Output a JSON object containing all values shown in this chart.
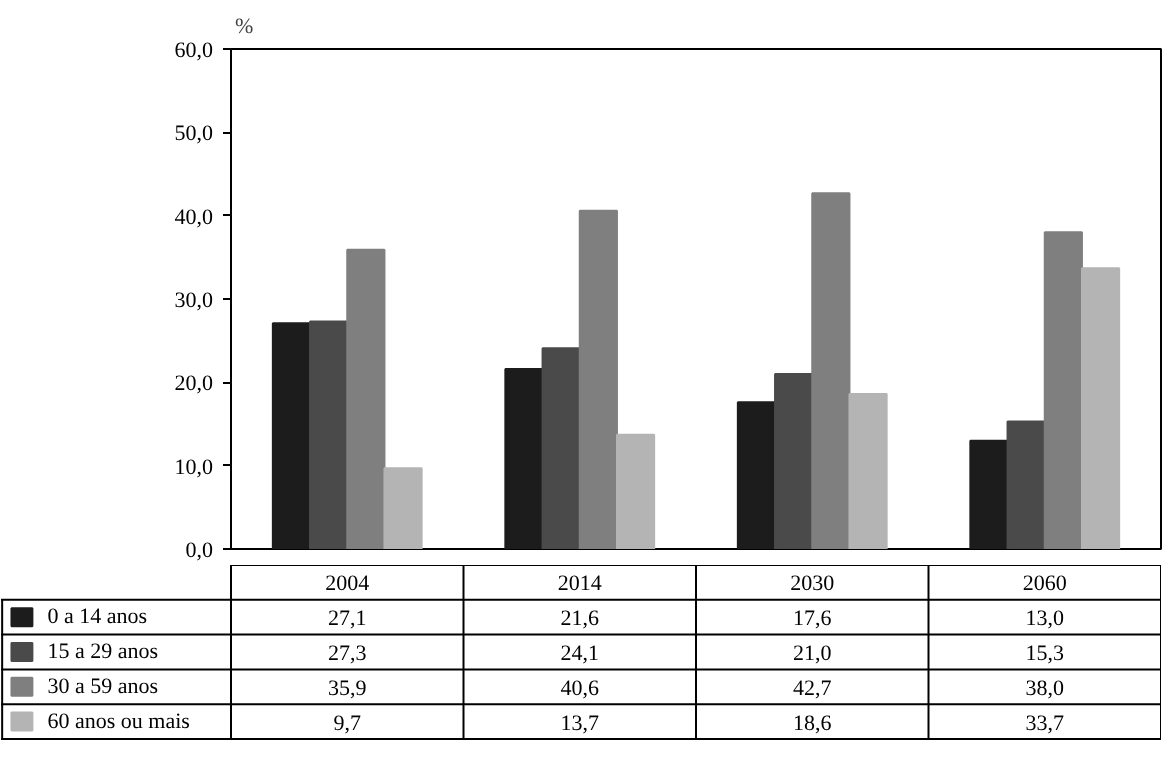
{
  "chart_data": {
    "type": "bar",
    "ylabel": "%",
    "categories": [
      "2004",
      "2014",
      "2030",
      "2060"
    ],
    "series": [
      {
        "name": "0 a 14 anos",
        "color": "#1c1c1c",
        "values": [
          27.1,
          21.6,
          17.6,
          13.0
        ],
        "value_labels": [
          "27,1",
          "21,6",
          "17,6",
          "13,0"
        ]
      },
      {
        "name": "15 a 29 anos",
        "color": "#4a4a4a",
        "values": [
          27.3,
          24.1,
          21.0,
          15.3
        ],
        "value_labels": [
          "27,3",
          "24,1",
          "21,0",
          "15,3"
        ]
      },
      {
        "name": "30 a 59 anos",
        "color": "#7f7f7f",
        "values": [
          35.9,
          40.6,
          42.7,
          38.0
        ],
        "value_labels": [
          "35,9",
          "40,6",
          "42,7",
          "38,0"
        ]
      },
      {
        "name": "60 anos ou mais",
        "color": "#b4b4b4",
        "values": [
          9.7,
          13.7,
          18.6,
          33.7
        ],
        "value_labels": [
          "9,7",
          "13,7",
          "18,6",
          "33,7"
        ]
      }
    ],
    "ylim": [
      0,
      60
    ],
    "yticks": [
      {
        "value": 0,
        "label": "0,0"
      },
      {
        "value": 10,
        "label": "10,0"
      },
      {
        "value": 20,
        "label": "20,0"
      },
      {
        "value": 30,
        "label": "30,0"
      },
      {
        "value": 40,
        "label": "40,0"
      },
      {
        "value": 50,
        "label": "50,0"
      },
      {
        "value": 60,
        "label": "60,0"
      }
    ],
    "grid": false,
    "legend": "bottom"
  }
}
